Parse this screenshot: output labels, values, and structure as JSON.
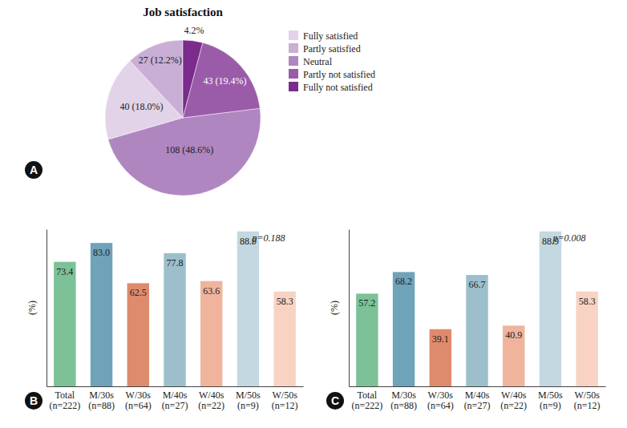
{
  "chart_data": [
    {
      "type": "pie",
      "panel": "A",
      "title": "Job satisfaction",
      "categories": [
        "Fully satisfied",
        "Partly satisfied",
        "Neutral",
        "Partly not satisfied",
        "Fully not satisfied"
      ],
      "values": [
        18.0,
        12.2,
        48.6,
        19.4,
        4.2
      ],
      "value_labels": [
        "40 (18.0%)",
        "27 (12.2%)",
        "108 (48.6%)",
        "43 (19.4%)",
        "4.2%"
      ],
      "colors": [
        "#e2d3e8",
        "#c9aed5",
        "#b086c1",
        "#9a5ba9",
        "#7a2b8c"
      ],
      "data_labels": true,
      "legend": "right"
    },
    {
      "type": "bar",
      "panel": "B",
      "ylabel": "(%)",
      "annotation": "p=0.188",
      "categories": [
        "Total\n(n=222)",
        "M/30s\n(n=88)",
        "W/30s\n(n=64)",
        "M/40s\n(n=27)",
        "W/40s\n(n=22)",
        "M/50s\n(n=9)",
        "W/50s\n(n=12)"
      ],
      "values": [
        73.4,
        83.0,
        62.5,
        77.8,
        63.6,
        88.9,
        58.3
      ],
      "value_labels": [
        "73.4",
        "83.0",
        "62.5",
        "77.8",
        "63.6",
        "88.9",
        "58.3"
      ],
      "colors": [
        "#7cc198",
        "#6ea3ba",
        "#de8a6d",
        "#9cbfcb",
        "#efb49b",
        "#c3d8e0",
        "#f8d3c3"
      ],
      "ylim": [
        10,
        90
      ],
      "yticks": [],
      "tick_labels": "x",
      "data_labels": true
    },
    {
      "type": "bar",
      "panel": "C",
      "ylabel": "(%)",
      "annotation": "p=0.008",
      "categories": [
        "Total\n(n=222)",
        "M/30s\n(n=88)",
        "W/30s\n(n=64)",
        "M/40s\n(n=27)",
        "W/40s\n(n=22)",
        "M/50s\n(n=9)",
        "W/50s\n(n=12)"
      ],
      "values": [
        57.2,
        68.2,
        39.1,
        66.7,
        40.9,
        88.9,
        58.3
      ],
      "value_labels": [
        "57.2",
        "68.2",
        "39.1",
        "66.7",
        "40.9",
        "88.9",
        "58.3"
      ],
      "colors": [
        "#7cc198",
        "#6ea3ba",
        "#de8a6d",
        "#9cbfcb",
        "#efb49b",
        "#c3d8e0",
        "#f8d3c3"
      ],
      "ylim": [
        10,
        90
      ],
      "yticks": [],
      "tick_labels": "x",
      "data_labels": true
    }
  ]
}
